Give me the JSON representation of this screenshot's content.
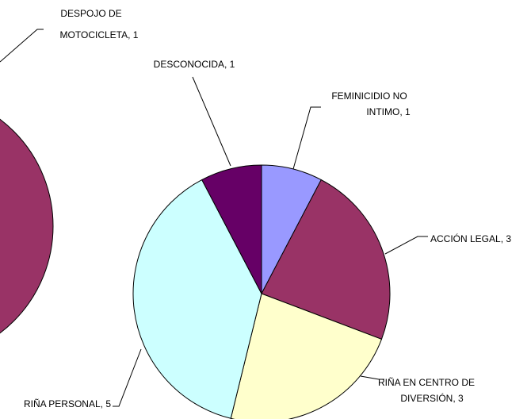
{
  "chart_data": [
    {
      "type": "pie",
      "labels": [
        [
          "DESPOJO DE",
          "MOTOCICLETA, 1"
        ]
      ],
      "values": [
        1
      ],
      "colors": [
        "#993366"
      ]
    },
    {
      "type": "pie",
      "labels": [
        [
          "FEMINICIDIO NO",
          "INTIMO, 1"
        ],
        [
          "ACCIÓN LEGAL, 3"
        ],
        [
          "RIÑA EN CENTRO DE",
          "DIVERSIÓN, 3"
        ],
        [
          "RIÑA PERSONAL, 5"
        ],
        [
          "DESCONOCIDA, 1"
        ]
      ],
      "values": [
        1,
        3,
        3,
        5,
        1
      ],
      "colors": [
        "#9999ff",
        "#993366",
        "#ffffcc",
        "#ccffff",
        "#660066"
      ]
    }
  ]
}
